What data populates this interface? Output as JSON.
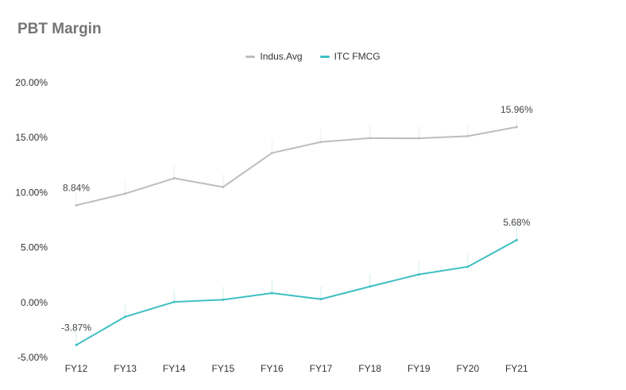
{
  "chart_data": {
    "type": "line",
    "title": "PBT Margin",
    "categories": [
      "FY12",
      "FY13",
      "FY14",
      "FY15",
      "FY16",
      "FY17",
      "FY18",
      "FY19",
      "FY20",
      "FY21"
    ],
    "series": [
      {
        "name": "Indus.Avg",
        "color": "#bdbdbd",
        "values": [
          8.84,
          9.9,
          11.3,
          10.5,
          13.6,
          14.6,
          14.95,
          14.93,
          15.13,
          15.96
        ],
        "labels": [
          {
            "index": 0,
            "text": "8.84%",
            "position": "above"
          },
          {
            "index": 9,
            "text": "15.96%",
            "position": "above"
          }
        ]
      },
      {
        "name": "ITC FMCG",
        "color": "#3fbfc4",
        "values": [
          -3.87,
          -1.3,
          0.05,
          0.25,
          0.85,
          0.3,
          1.45,
          2.55,
          3.25,
          5.68
        ],
        "labels": [
          {
            "index": 0,
            "text": "-3.87%",
            "position": "above"
          },
          {
            "index": 9,
            "text": "5.68%",
            "position": "above"
          }
        ]
      }
    ],
    "y_ticks": [
      "-5.00%",
      "0.00%",
      "5.00%",
      "10.00%",
      "15.00%",
      "20.00%"
    ],
    "y_tick_values": [
      -5,
      0,
      5,
      10,
      15,
      20
    ],
    "ylim": [
      -5,
      20
    ],
    "xlabel": "",
    "ylabel": "",
    "grid": false,
    "legend": "top-center"
  }
}
